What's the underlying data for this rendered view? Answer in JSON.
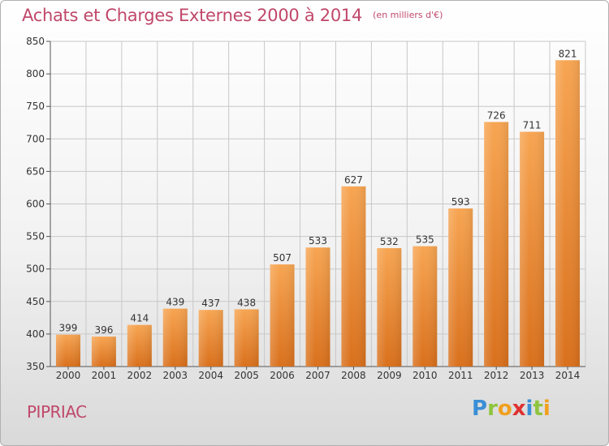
{
  "colors": {
    "title": "#c0486a",
    "bar_light": "#f7a552",
    "bar_dark": "#d9701c",
    "grid": "#c8c8c8",
    "axis": "#555555"
  },
  "location": "PIPRIAC",
  "logo": {
    "text": "Proxiti",
    "letters": [
      "P",
      "r",
      "o",
      "x",
      "i",
      "t",
      "i"
    ]
  },
  "chart_data": {
    "type": "bar",
    "title": "Achats et Charges Externes 2000 à 2014",
    "subtitle": "(en milliers d'€)",
    "xlabel": "",
    "ylabel": "",
    "categories": [
      "2000",
      "2001",
      "2002",
      "2003",
      "2004",
      "2005",
      "2006",
      "2007",
      "2008",
      "2009",
      "2010",
      "2011",
      "2012",
      "2013",
      "2014"
    ],
    "values": [
      399,
      396,
      414,
      439,
      437,
      438,
      507,
      533,
      627,
      532,
      535,
      593,
      726,
      711,
      821
    ],
    "ylim": [
      350,
      850
    ],
    "yticks": [
      350,
      400,
      450,
      500,
      550,
      600,
      650,
      700,
      750,
      800,
      850
    ],
    "grid": true,
    "data_labels": true
  }
}
